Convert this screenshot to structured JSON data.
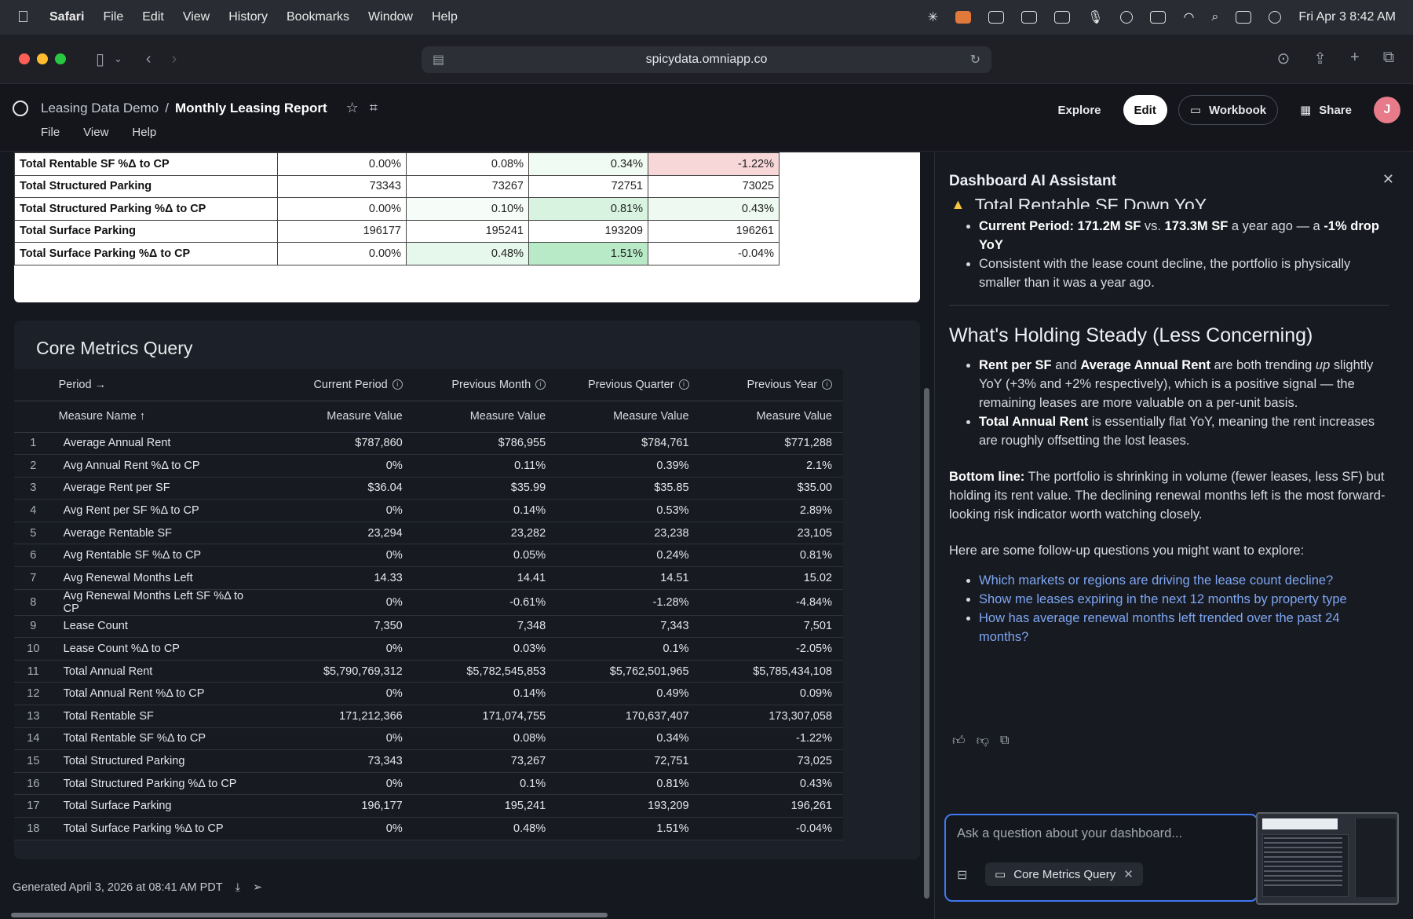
{
  "menubar": {
    "app": "Safari",
    "items": [
      "File",
      "Edit",
      "View",
      "History",
      "Bookmarks",
      "Window",
      "Help"
    ],
    "datetime": "Fri Apr 3  8:42 AM"
  },
  "browser": {
    "url": "spicydata.omniapp.co"
  },
  "app": {
    "breadcrumb_parent": "Leasing Data Demo",
    "breadcrumb_sep": "/",
    "breadcrumb_current": "Monthly Leasing Report",
    "menu": [
      "File",
      "View",
      "Help"
    ],
    "explore": "Explore",
    "edit": "Edit",
    "workbook": "Workbook",
    "share": "Share",
    "avatar_initial": "J"
  },
  "top_table": {
    "rows": [
      {
        "label": "Total Rentable SF %Δ to CP",
        "values": [
          "0.00%",
          "0.08%",
          "0.34%",
          "-1.22%"
        ]
      },
      {
        "label": "Total Structured Parking",
        "values": [
          "73343",
          "73267",
          "72751",
          "73025"
        ]
      },
      {
        "label": "Total Structured Parking %Δ to CP",
        "values": [
          "0.00%",
          "0.10%",
          "0.81%",
          "0.43%"
        ]
      },
      {
        "label": "Total Surface Parking",
        "values": [
          "196177",
          "195241",
          "193209",
          "196261"
        ]
      },
      {
        "label": "Total Surface Parking %Δ to CP",
        "values": [
          "0.00%",
          "0.48%",
          "1.51%",
          "-0.04%"
        ]
      }
    ],
    "cell_colors": [
      [
        "#ffffff",
        "#ffffff",
        "#f0fbf3",
        "#f8d7d8"
      ],
      [
        "#ffffff",
        "#ffffff",
        "#ffffff",
        "#ffffff"
      ],
      [
        "#ffffff",
        "#f6fdf8",
        "#d8f3e0",
        "#eefaf1"
      ],
      [
        "#ffffff",
        "#ffffff",
        "#ffffff",
        "#ffffff"
      ],
      [
        "#ffffff",
        "#e6f7eb",
        "#b9eac8",
        "#ffffff"
      ]
    ]
  },
  "core": {
    "title": "Core Metrics Query",
    "period_header": "Period →",
    "periods": [
      "Current Period",
      "Previous Month",
      "Previous Quarter",
      "Previous Year"
    ],
    "measure_header": "Measure Name ↑",
    "value_header": "Measure Value",
    "rows": [
      {
        "n": "1",
        "name": "Average Annual Rent",
        "v": [
          "$787,860",
          "$786,955",
          "$784,761",
          "$771,288"
        ]
      },
      {
        "n": "2",
        "name": "Avg Annual Rent %Δ to CP",
        "v": [
          "0%",
          "0.11%",
          "0.39%",
          "2.1%"
        ]
      },
      {
        "n": "3",
        "name": "Average Rent per SF",
        "v": [
          "$36.04",
          "$35.99",
          "$35.85",
          "$35.00"
        ]
      },
      {
        "n": "4",
        "name": "Avg Rent per SF %Δ to CP",
        "v": [
          "0%",
          "0.14%",
          "0.53%",
          "2.89%"
        ]
      },
      {
        "n": "5",
        "name": "Average Rentable SF",
        "v": [
          "23,294",
          "23,282",
          "23,238",
          "23,105"
        ]
      },
      {
        "n": "6",
        "name": "Avg Rentable SF %Δ to CP",
        "v": [
          "0%",
          "0.05%",
          "0.24%",
          "0.81%"
        ]
      },
      {
        "n": "7",
        "name": "Avg Renewal Months Left",
        "v": [
          "14.33",
          "14.41",
          "14.51",
          "15.02"
        ]
      },
      {
        "n": "8",
        "name": "Avg Renewal Months Left SF %Δ to CP",
        "v": [
          "0%",
          "-0.61%",
          "-1.28%",
          "-4.84%"
        ]
      },
      {
        "n": "9",
        "name": "Lease Count",
        "v": [
          "7,350",
          "7,348",
          "7,343",
          "7,501"
        ]
      },
      {
        "n": "10",
        "name": "Lease Count %Δ to CP",
        "v": [
          "0%",
          "0.03%",
          "0.1%",
          "-2.05%"
        ]
      },
      {
        "n": "11",
        "name": "Total Annual Rent",
        "v": [
          "$5,790,769,312",
          "$5,782,545,853",
          "$5,762,501,965",
          "$5,785,434,108"
        ]
      },
      {
        "n": "12",
        "name": "Total Annual Rent %Δ to CP",
        "v": [
          "0%",
          "0.14%",
          "0.49%",
          "0.09%"
        ]
      },
      {
        "n": "13",
        "name": "Total Rentable SF",
        "v": [
          "171,212,366",
          "171,074,755",
          "170,637,407",
          "173,307,058"
        ]
      },
      {
        "n": "14",
        "name": "Total Rentable SF %Δ to CP",
        "v": [
          "0%",
          "0.08%",
          "0.34%",
          "-1.22%"
        ]
      },
      {
        "n": "15",
        "name": "Total Structured Parking",
        "v": [
          "73,343",
          "73,267",
          "72,751",
          "73,025"
        ]
      },
      {
        "n": "16",
        "name": "Total Structured Parking %Δ to CP",
        "v": [
          "0%",
          "0.1%",
          "0.81%",
          "0.43%"
        ]
      },
      {
        "n": "17",
        "name": "Total Surface Parking",
        "v": [
          "196,177",
          "195,241",
          "193,209",
          "196,261"
        ]
      },
      {
        "n": "18",
        "name": "Total Surface Parking %Δ to CP",
        "v": [
          "0%",
          "0.48%",
          "1.51%",
          "-0.04%"
        ]
      }
    ]
  },
  "footer": {
    "generated": "Generated April 3, 2026 at 08:41 AM PDT"
  },
  "assistant": {
    "title": "Dashboard AI Assistant",
    "truncated_heading": "Total Rentable SF Down YoY",
    "b1_lead": "Current Period: ",
    "b1_v1": "171.2M SF",
    "b1_mid": " vs. ",
    "b1_v2": "173.3M SF",
    "b1_tail": " a year ago — a ",
    "b1_drop": "-1% drop YoY",
    "b2": "Consistent with the lease count decline, the portfolio is physically smaller than it was a year ago.",
    "h_steady": "What's Holding Steady (Less Concerning)",
    "s1_a": "Rent per SF",
    "s1_and": " and ",
    "s1_b": "Average Annual Rent",
    "s1_c": " are both trending ",
    "s1_up": "up",
    "s1_d": " slightly YoY (+3% and +2% respectively), which is a positive signal — the remaining leases are more valuable on a per-unit basis.",
    "s2_a": "Total Annual Rent",
    "s2_b": " is essentially flat YoY, meaning the rent increases are roughly offsetting the lost leases.",
    "bottom_lead": "Bottom line:",
    "bottom_text": " The portfolio is shrinking in volume (fewer leases, less SF) but holding its rent value. The declining renewal months left is the most forward-looking risk indicator worth watching closely.",
    "followup_intro": "Here are some follow-up questions you might want to explore:",
    "links": [
      "Which markets or regions are driving the lease count decline?",
      "Show me leases expiring in the next 12 months by property type",
      "How has average renewal months left trended over the past 24 months?"
    ],
    "input_placeholder": "Ask a question about your dashboard...",
    "chip": "Core Metrics Query"
  }
}
